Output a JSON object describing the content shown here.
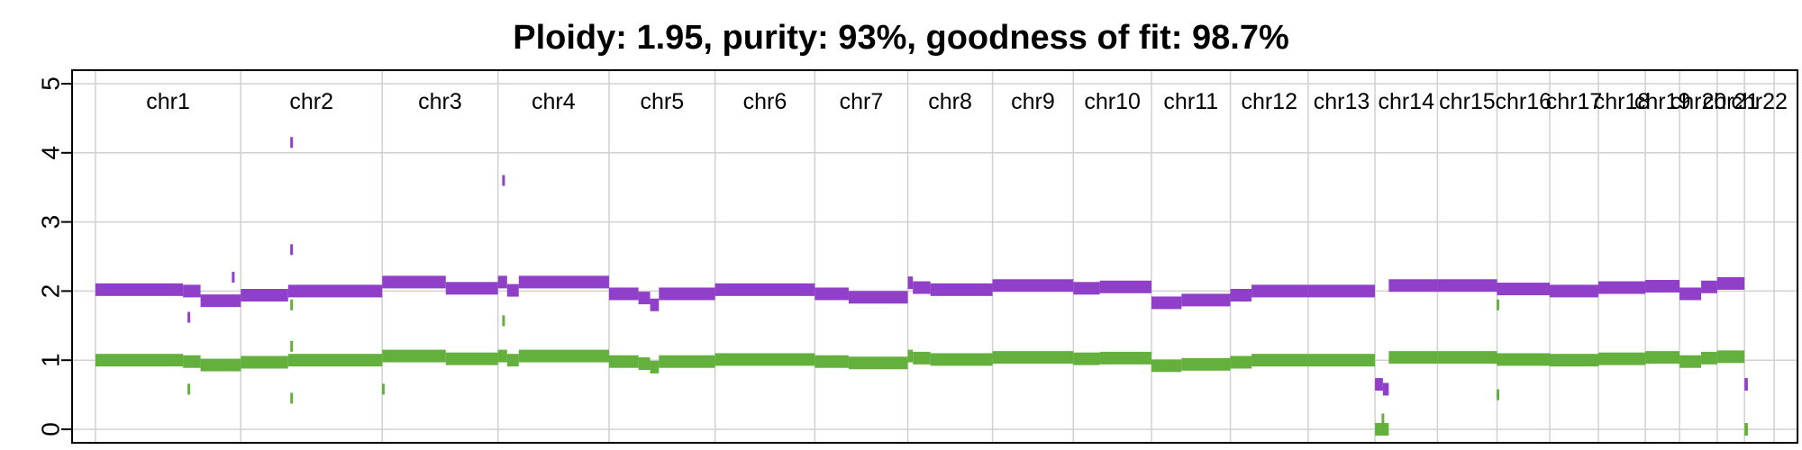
{
  "chart_data": {
    "type": "scatter",
    "title": "Ploidy: 1.95, purity: 93%, goodness of fit: 98.7%",
    "xlabel": "",
    "ylabel": "",
    "ylim": [
      0,
      5
    ],
    "yticks": [
      0,
      1,
      2,
      3,
      4,
      5
    ],
    "grid": true,
    "legend": "none",
    "colors": {
      "total_copy_number": "#9040c8",
      "minor_copy_number": "#64b03c",
      "grid": "#d0d0d0",
      "frame": "#000000"
    },
    "chromosomes": [
      {
        "name": "chr1",
        "start": 0,
        "end": 248.9
      },
      {
        "name": "chr2",
        "start": 248.9,
        "end": 491.1
      },
      {
        "name": "chr3",
        "start": 491.1,
        "end": 689.4
      },
      {
        "name": "chr4",
        "start": 689.4,
        "end": 879.6
      },
      {
        "name": "chr5",
        "start": 879.6,
        "end": 1061.2
      },
      {
        "name": "chr6",
        "start": 1061.2,
        "end": 1232.0
      },
      {
        "name": "chr7",
        "start": 1232.0,
        "end": 1391.3
      },
      {
        "name": "chr8",
        "start": 1391.3,
        "end": 1536.4
      },
      {
        "name": "chr9",
        "start": 1536.4,
        "end": 1674.8
      },
      {
        "name": "chr10",
        "start": 1674.8,
        "end": 1808.6
      },
      {
        "name": "chr11",
        "start": 1808.6,
        "end": 1943.7
      },
      {
        "name": "chr12",
        "start": 1943.7,
        "end": 2077.0
      },
      {
        "name": "chr13",
        "start": 2077.0,
        "end": 2191.4
      },
      {
        "name": "chr14",
        "start": 2191.4,
        "end": 2298.4
      },
      {
        "name": "chr15",
        "start": 2298.4,
        "end": 2400.4
      },
      {
        "name": "chr16",
        "start": 2400.4,
        "end": 2490.7
      },
      {
        "name": "chr17",
        "start": 2490.7,
        "end": 2574.0
      },
      {
        "name": "chr18",
        "start": 2574.0,
        "end": 2654.4
      },
      {
        "name": "chr19",
        "start": 2654.4,
        "end": 2713.0
      },
      {
        "name": "chr20",
        "start": 2713.0,
        "end": 2777.5
      },
      {
        "name": "chr21",
        "start": 2777.5,
        "end": 2824.2
      },
      {
        "name": "chr22",
        "start": 2824.2,
        "end": 2875.0
      }
    ],
    "series": [
      {
        "name": "",
        "color_key": "total_copy_number",
        "segments": [
          {
            "start": 0,
            "end": 150,
            "value": 2.02
          },
          {
            "start": 150,
            "end": 180,
            "value": 2.0
          },
          {
            "start": 180,
            "end": 248.9,
            "value": 1.86
          },
          {
            "start": 248.9,
            "end": 330,
            "value": 1.94
          },
          {
            "start": 330,
            "end": 491.1,
            "value": 2.0
          },
          {
            "start": 491.1,
            "end": 600,
            "value": 2.13
          },
          {
            "start": 600,
            "end": 689.4,
            "value": 2.04
          },
          {
            "start": 689.4,
            "end": 705,
            "value": 2.13
          },
          {
            "start": 705,
            "end": 725,
            "value": 2.01
          },
          {
            "start": 725,
            "end": 879.6,
            "value": 2.13
          },
          {
            "start": 879.6,
            "end": 930,
            "value": 1.96
          },
          {
            "start": 930,
            "end": 950,
            "value": 1.9
          },
          {
            "start": 950,
            "end": 965,
            "value": 1.8
          },
          {
            "start": 965,
            "end": 1061.2,
            "value": 1.96
          },
          {
            "start": 1061.2,
            "end": 1232.0,
            "value": 2.02
          },
          {
            "start": 1232.0,
            "end": 1290,
            "value": 1.96
          },
          {
            "start": 1290,
            "end": 1391.3,
            "value": 1.91
          },
          {
            "start": 1391.3,
            "end": 1400,
            "value": 2.12
          },
          {
            "start": 1400,
            "end": 1430,
            "value": 2.05
          },
          {
            "start": 1430,
            "end": 1536.4,
            "value": 2.02
          },
          {
            "start": 1536.4,
            "end": 1674.8,
            "value": 2.08
          },
          {
            "start": 1674.8,
            "end": 1720,
            "value": 2.04
          },
          {
            "start": 1720,
            "end": 1808.6,
            "value": 2.06
          },
          {
            "start": 1808.6,
            "end": 1860,
            "value": 1.83
          },
          {
            "start": 1860,
            "end": 1943.7,
            "value": 1.87
          },
          {
            "start": 1943.7,
            "end": 1980,
            "value": 1.94
          },
          {
            "start": 1980,
            "end": 2077.0,
            "value": 2.0
          },
          {
            "start": 2077.0,
            "end": 2191.4,
            "value": 2.0
          },
          {
            "start": 2191.4,
            "end": 2205,
            "value": 0.65
          },
          {
            "start": 2205,
            "end": 2215,
            "value": 0.58
          },
          {
            "start": 2215,
            "end": 2298.4,
            "value": 2.08
          },
          {
            "start": 2298.4,
            "end": 2400.4,
            "value": 2.08
          },
          {
            "start": 2400.4,
            "end": 2490.7,
            "value": 2.03
          },
          {
            "start": 2490.7,
            "end": 2574.0,
            "value": 2.0
          },
          {
            "start": 2574.0,
            "end": 2654.4,
            "value": 2.05
          },
          {
            "start": 2654.4,
            "end": 2713.0,
            "value": 2.07
          },
          {
            "start": 2713.0,
            "end": 2750,
            "value": 1.96
          },
          {
            "start": 2750,
            "end": 2777.5,
            "value": 2.06
          },
          {
            "start": 2777.5,
            "end": 2824.2,
            "value": 2.11
          },
          {
            "start": 2824.2,
            "end": 2830,
            "value": 0.65
          }
        ],
        "points": [
          {
            "x": 160,
            "value": 1.62
          },
          {
            "x": 236,
            "value": 2.2
          },
          {
            "x": 336,
            "value": 2.6
          },
          {
            "x": 336,
            "value": 4.15
          },
          {
            "x": 699,
            "value": 3.6
          }
        ]
      },
      {
        "name": "",
        "color_key": "minor_copy_number",
        "segments": [
          {
            "start": 0,
            "end": 150,
            "value": 1.0
          },
          {
            "start": 150,
            "end": 180,
            "value": 0.98
          },
          {
            "start": 180,
            "end": 248.9,
            "value": 0.93
          },
          {
            "start": 248.9,
            "end": 330,
            "value": 0.97
          },
          {
            "start": 330,
            "end": 491.1,
            "value": 1.0
          },
          {
            "start": 491.1,
            "end": 600,
            "value": 1.06
          },
          {
            "start": 600,
            "end": 689.4,
            "value": 1.02
          },
          {
            "start": 689.4,
            "end": 705,
            "value": 1.06
          },
          {
            "start": 705,
            "end": 725,
            "value": 1.0
          },
          {
            "start": 725,
            "end": 879.6,
            "value": 1.06
          },
          {
            "start": 879.6,
            "end": 930,
            "value": 0.98
          },
          {
            "start": 930,
            "end": 950,
            "value": 0.95
          },
          {
            "start": 950,
            "end": 965,
            "value": 0.9
          },
          {
            "start": 965,
            "end": 1061.2,
            "value": 0.98
          },
          {
            "start": 1061.2,
            "end": 1232.0,
            "value": 1.01
          },
          {
            "start": 1232.0,
            "end": 1290,
            "value": 0.98
          },
          {
            "start": 1290,
            "end": 1391.3,
            "value": 0.96
          },
          {
            "start": 1391.3,
            "end": 1400,
            "value": 1.06
          },
          {
            "start": 1400,
            "end": 1430,
            "value": 1.03
          },
          {
            "start": 1430,
            "end": 1536.4,
            "value": 1.01
          },
          {
            "start": 1536.4,
            "end": 1674.8,
            "value": 1.04
          },
          {
            "start": 1674.8,
            "end": 1720,
            "value": 1.02
          },
          {
            "start": 1720,
            "end": 1808.6,
            "value": 1.03
          },
          {
            "start": 1808.6,
            "end": 1860,
            "value": 0.92
          },
          {
            "start": 1860,
            "end": 1943.7,
            "value": 0.94
          },
          {
            "start": 1943.7,
            "end": 1980,
            "value": 0.97
          },
          {
            "start": 1980,
            "end": 2077.0,
            "value": 1.0
          },
          {
            "start": 2077.0,
            "end": 2191.4,
            "value": 1.0
          },
          {
            "start": 2191.4,
            "end": 2215,
            "value": 0.0
          },
          {
            "start": 2215,
            "end": 2298.4,
            "value": 1.04
          },
          {
            "start": 2298.4,
            "end": 2400.4,
            "value": 1.04
          },
          {
            "start": 2400.4,
            "end": 2490.7,
            "value": 1.01
          },
          {
            "start": 2490.7,
            "end": 2574.0,
            "value": 1.0
          },
          {
            "start": 2574.0,
            "end": 2654.4,
            "value": 1.02
          },
          {
            "start": 2654.4,
            "end": 2713.0,
            "value": 1.04
          },
          {
            "start": 2713.0,
            "end": 2750,
            "value": 0.98
          },
          {
            "start": 2750,
            "end": 2777.5,
            "value": 1.03
          },
          {
            "start": 2777.5,
            "end": 2824.2,
            "value": 1.05
          },
          {
            "start": 2824.2,
            "end": 2830,
            "value": 0.0
          }
        ],
        "points": [
          {
            "x": 160,
            "value": 0.58
          },
          {
            "x": 336,
            "value": 0.45
          },
          {
            "x": 336,
            "value": 1.8
          },
          {
            "x": 336,
            "value": 1.2
          },
          {
            "x": 493,
            "value": 0.58
          },
          {
            "x": 699,
            "value": 1.57
          },
          {
            "x": 2205,
            "value": 0.15
          },
          {
            "x": 2402,
            "value": 1.8
          },
          {
            "x": 2402,
            "value": 0.5
          }
        ]
      }
    ]
  }
}
